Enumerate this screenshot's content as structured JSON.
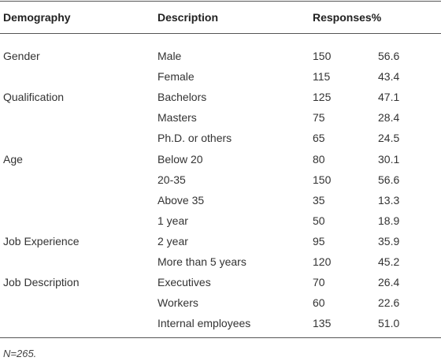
{
  "table": {
    "header": [
      "Demography",
      "Description",
      "Responses%"
    ],
    "rows": [
      [
        "Gender",
        "Male",
        "150",
        "56.6"
      ],
      [
        null,
        "Female",
        "115",
        "43.4"
      ],
      [
        "Qualification",
        "Bachelors",
        "125",
        "47.1"
      ],
      [
        null,
        "Masters",
        "75",
        "28.4"
      ],
      [
        null,
        "Ph.D. or others",
        "65",
        "24.5"
      ],
      [
        "Age",
        "Below 20",
        "80",
        "30.1"
      ],
      [
        null,
        "20-35",
        "150",
        "56.6"
      ],
      [
        null,
        "Above 35",
        "35",
        "13.3"
      ],
      [
        null,
        "1 year",
        "50",
        "18.9"
      ],
      [
        "Job Experience",
        "2 year",
        "95",
        "35.9"
      ],
      [
        null,
        "More than 5 years",
        "120",
        "45.2"
      ],
      [
        "Job Description",
        "Executives",
        "70",
        "26.4"
      ],
      [
        null,
        "Workers",
        "60",
        "22.6"
      ],
      [
        null,
        "Internal employees",
        "135",
        "51.0"
      ]
    ],
    "note": "N=265."
  }
}
